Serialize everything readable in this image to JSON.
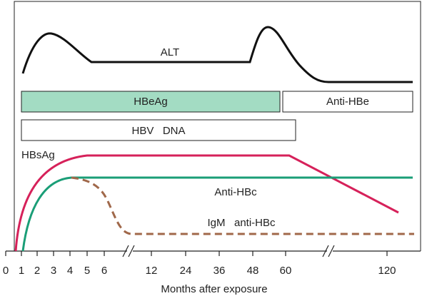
{
  "labels": {
    "alt": "ALT",
    "hbeag": "HBeAg",
    "anti_hbe": "Anti-HBe",
    "hbv_dna": "HBV   DNA",
    "hbsag": "HBsAg",
    "anti_hbc": "Anti-HBc",
    "igm_anti_hbc": "IgM   anti-HBc"
  },
  "axis": {
    "title": "Months after exposure",
    "ticks": [
      0,
      1,
      2,
      3,
      4,
      5,
      6,
      12,
      24,
      36,
      48,
      60,
      120
    ]
  }
}
